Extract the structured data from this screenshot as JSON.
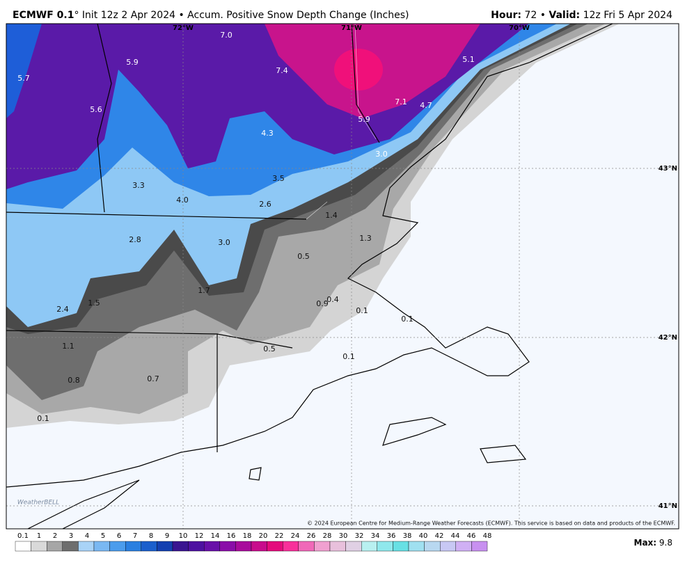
{
  "header": {
    "model": "ECMWF 0.1",
    "rest": "° Init 12z 2 Apr 2024 • Accum. Positive Snow Depth Change (Inches)",
    "hour_label": "Hour:",
    "hour": "72",
    "separator": "•",
    "valid_label": "Valid:",
    "valid": "12z Fri 5 Apr 2024"
  },
  "map": {
    "value_labels": [
      "5.7",
      "5.9",
      "7.0",
      "7.4",
      "5.1",
      "5.6",
      "7.1",
      "4.7",
      "5.9",
      "4.3",
      "3.0",
      "3.3",
      "4.0",
      "3.5",
      "2.6",
      "1.4",
      "1.3",
      "2.8",
      "3.0",
      "0.5",
      "1.7",
      "1.5",
      "2.4",
      "0.9",
      "0.4",
      "0.1",
      "0.1",
      "1.1",
      "0.5",
      "0.1",
      "0.8",
      "0.7",
      "0.1"
    ],
    "longitude_labels": [
      "72°W",
      "71°W",
      "70°W"
    ],
    "latitude_labels": [
      "43°N",
      "42°N",
      "41°N"
    ],
    "copyright": "© 2024 European Centre for Medium-Range Weather Forecasts (ECMWF). This service is based on data and products of the ECMWF.",
    "logo": "WeatherBELL"
  },
  "colorbar": {
    "labels": [
      "0.1",
      "1",
      "2",
      "3",
      "4",
      "5",
      "6",
      "7",
      "8",
      "9",
      "10",
      "12",
      "14",
      "16",
      "18",
      "20",
      "22",
      "24",
      "26",
      "28",
      "30",
      "32",
      "34",
      "36",
      "38",
      "40",
      "42",
      "44",
      "46",
      "48"
    ],
    "colors": [
      "#ffffff",
      "#d9d9d9",
      "#a6a6a6",
      "#6e6e6e",
      "#a9d3f7",
      "#7ab8f2",
      "#4b9cec",
      "#2a7fe0",
      "#1b5fcc",
      "#1440b0",
      "#3a1590",
      "#4d12a0",
      "#6810a8",
      "#8a0ea8",
      "#a80c9c",
      "#c80c8c",
      "#e40c7c",
      "#f8309a",
      "#f068b8",
      "#f0a0d0",
      "#e8c0dc",
      "#e0d0e4",
      "#b8f0f0",
      "#90e8ec",
      "#68e0e4",
      "#a0e0f0",
      "#b8d8f0",
      "#c8c8f4",
      "#d0b0f4",
      "#c890f0"
    ]
  },
  "footer": {
    "max_label": "Max:",
    "max": "9.8"
  }
}
